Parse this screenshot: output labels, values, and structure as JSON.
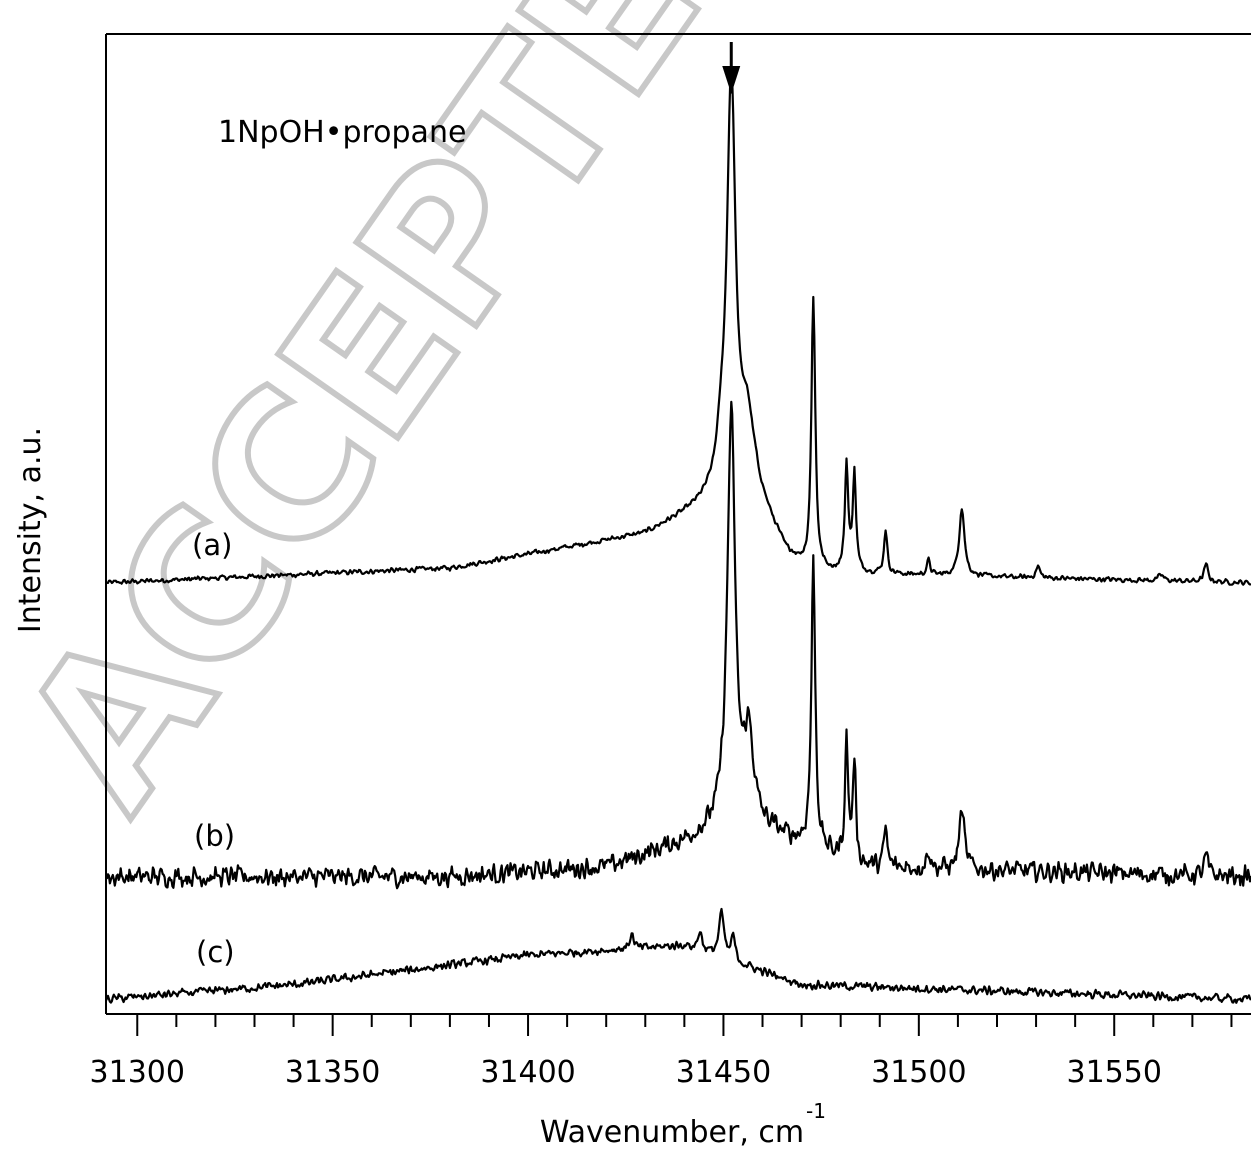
{
  "watermark": "ACCEPTED MANUSCRIPT",
  "chart_data": {
    "type": "line",
    "annotation": "1NpOH•propane",
    "xlabel": "Wavenumber, cm",
    "xlabel_superscript": "-1",
    "ylabel": "Intensity, a.u.",
    "xlim": [
      31292,
      31585
    ],
    "ylim": [
      0,
      10
    ],
    "x_ticks": [
      31300,
      31350,
      31400,
      31450,
      31500,
      31550
    ],
    "x_ticks_minor_step": 10,
    "grid": false,
    "legend": "none",
    "arrow_marker_x": 31452,
    "line_color": "#000000",
    "series": [
      {
        "name": "(a)",
        "baseline": 4.4,
        "trend": [
          [
            31292,
            0.0
          ],
          [
            31380,
            0.15
          ],
          [
            31430,
            0.5
          ],
          [
            31446,
            0.8
          ],
          [
            31458,
            0.9
          ],
          [
            31466,
            0.3
          ],
          [
            31472,
            0.1
          ],
          [
            31585,
            0.0
          ]
        ],
        "peaks": [
          {
            "x": 31452.0,
            "height": 4.2,
            "width": 1.3
          },
          {
            "x": 31449.5,
            "height": 0.4,
            "width": 1.5
          },
          {
            "x": 31456.0,
            "height": 0.7,
            "width": 2.0
          },
          {
            "x": 31473.0,
            "height": 2.8,
            "width": 0.6
          },
          {
            "x": 31481.5,
            "height": 1.1,
            "width": 0.5
          },
          {
            "x": 31483.5,
            "height": 1.0,
            "width": 0.5
          },
          {
            "x": 31491.5,
            "height": 0.45,
            "width": 0.5
          },
          {
            "x": 31502.5,
            "height": 0.15,
            "width": 0.5
          },
          {
            "x": 31511.0,
            "height": 0.7,
            "width": 0.8
          },
          {
            "x": 31530.5,
            "height": 0.12,
            "width": 0.6
          },
          {
            "x": 31562.0,
            "height": 0.06,
            "width": 0.8
          },
          {
            "x": 31573.5,
            "height": 0.18,
            "width": 0.6
          }
        ],
        "noise": 0.03
      },
      {
        "name": "(b)",
        "baseline": 1.4,
        "trend": [
          [
            31292,
            0.0
          ],
          [
            31380,
            0.0
          ],
          [
            31420,
            0.1
          ],
          [
            31440,
            0.35
          ],
          [
            31450,
            0.5
          ],
          [
            31462,
            0.45
          ],
          [
            31472,
            0.3
          ],
          [
            31485,
            0.1
          ],
          [
            31585,
            0.0
          ]
        ],
        "peaks": [
          {
            "x": 31452.0,
            "height": 4.2,
            "width": 1.2
          },
          {
            "x": 31456.5,
            "height": 0.9,
            "width": 1.5
          },
          {
            "x": 31473.0,
            "height": 2.9,
            "width": 0.6
          },
          {
            "x": 31481.5,
            "height": 1.2,
            "width": 0.5
          },
          {
            "x": 31483.5,
            "height": 1.0,
            "width": 0.5
          },
          {
            "x": 31491.5,
            "height": 0.4,
            "width": 0.5
          },
          {
            "x": 31502.5,
            "height": 0.2,
            "width": 0.5
          },
          {
            "x": 31511.0,
            "height": 0.6,
            "width": 0.8
          },
          {
            "x": 31573.5,
            "height": 0.2,
            "width": 0.6
          }
        ],
        "noise": 0.12
      },
      {
        "name": "(c)",
        "baseline": 0.15,
        "trend": [
          [
            31292,
            0.0
          ],
          [
            31340,
            0.15
          ],
          [
            31400,
            0.45
          ],
          [
            31440,
            0.55
          ],
          [
            31455,
            0.35
          ],
          [
            31470,
            0.15
          ],
          [
            31585,
            0.0
          ]
        ],
        "peaks": [
          {
            "x": 31449.5,
            "height": 0.45,
            "width": 0.8
          },
          {
            "x": 31444.0,
            "height": 0.2,
            "width": 0.6
          },
          {
            "x": 31452.5,
            "height": 0.25,
            "width": 0.6
          },
          {
            "x": 31426.5,
            "height": 0.15,
            "width": 0.6
          }
        ],
        "noise": 0.05
      }
    ]
  }
}
